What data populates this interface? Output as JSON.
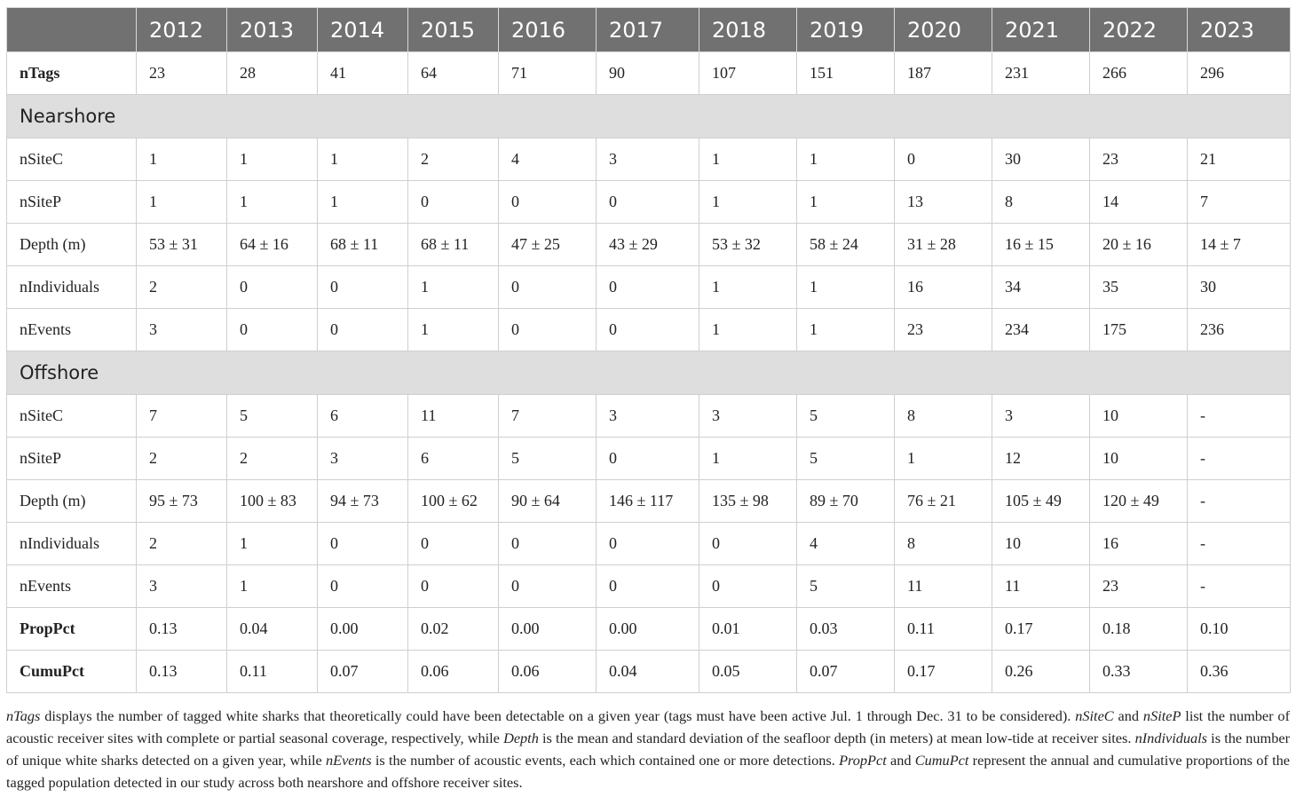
{
  "years": [
    "2012",
    "2013",
    "2014",
    "2015",
    "2016",
    "2017",
    "2018",
    "2019",
    "2020",
    "2021",
    "2022",
    "2023"
  ],
  "rows": [
    {
      "type": "data",
      "label": "nTags",
      "bold": true,
      "values": [
        "23",
        "28",
        "41",
        "64",
        "71",
        "90",
        "107",
        "151",
        "187",
        "231",
        "266",
        "296"
      ]
    },
    {
      "type": "section",
      "label": "Nearshore"
    },
    {
      "type": "data",
      "label": "nSiteC",
      "values": [
        "1",
        "1",
        "1",
        "2",
        "4",
        "3",
        "1",
        "1",
        "0",
        "30",
        "23",
        "21"
      ]
    },
    {
      "type": "data",
      "label": "nSiteP",
      "values": [
        "1",
        "1",
        "1",
        "0",
        "0",
        "0",
        "1",
        "1",
        "13",
        "8",
        "14",
        "7"
      ]
    },
    {
      "type": "data",
      "label": "Depth (m)",
      "values": [
        "53 ± 31",
        "64 ± 16",
        "68 ± 11",
        "68 ± 11",
        "47 ± 25",
        "43 ± 29",
        "53 ± 32",
        "58 ± 24",
        "31 ± 28",
        "16 ± 15",
        "20 ± 16",
        "14 ± 7"
      ]
    },
    {
      "type": "data",
      "label": "nIndividuals",
      "values": [
        "2",
        "0",
        "0",
        "1",
        "0",
        "0",
        "1",
        "1",
        "16",
        "34",
        "35",
        "30"
      ]
    },
    {
      "type": "data",
      "label": "nEvents",
      "values": [
        "3",
        "0",
        "0",
        "1",
        "0",
        "0",
        "1",
        "1",
        "23",
        "234",
        "175",
        "236"
      ]
    },
    {
      "type": "section",
      "label": "Offshore"
    },
    {
      "type": "data",
      "label": "nSiteC",
      "values": [
        "7",
        "5",
        "6",
        "11",
        "7",
        "3",
        "3",
        "5",
        "8",
        "3",
        "10",
        "-"
      ]
    },
    {
      "type": "data",
      "label": "nSiteP",
      "values": [
        "2",
        "2",
        "3",
        "6",
        "5",
        "0",
        "1",
        "5",
        "1",
        "12",
        "10",
        "-"
      ]
    },
    {
      "type": "data",
      "label": "Depth (m)",
      "values": [
        "95 ± 73",
        "100 ± 83",
        "94 ± 73",
        "100 ± 62",
        "90 ± 64",
        "146 ± 117",
        "135 ± 98",
        "89 ± 70",
        "76 ± 21",
        "105 ± 49",
        "120 ± 49",
        "-"
      ]
    },
    {
      "type": "data",
      "label": "nIndividuals",
      "values": [
        "2",
        "1",
        "0",
        "0",
        "0",
        "0",
        "0",
        "4",
        "8",
        "10",
        "16",
        "-"
      ]
    },
    {
      "type": "data",
      "label": "nEvents",
      "values": [
        "3",
        "1",
        "0",
        "0",
        "0",
        "0",
        "0",
        "5",
        "11",
        "11",
        "23",
        "-"
      ]
    },
    {
      "type": "data",
      "label": "PropPct",
      "bold": true,
      "values": [
        "0.13",
        "0.04",
        "0.00",
        "0.02",
        "0.00",
        "0.00",
        "0.01",
        "0.03",
        "0.11",
        "0.17",
        "0.18",
        "0.10"
      ]
    },
    {
      "type": "data",
      "label": "CumuPct",
      "bold": true,
      "values": [
        "0.13",
        "0.11",
        "0.07",
        "0.06",
        "0.06",
        "0.04",
        "0.05",
        "0.07",
        "0.17",
        "0.26",
        "0.33",
        "0.36"
      ]
    }
  ],
  "footnote": [
    {
      "t": "nTags",
      "i": true
    },
    {
      "t": " displays the number of tagged white sharks that theoretically could have been detectable on a given year (tags must have been active Jul. 1 through Dec. 31 to be considered). "
    },
    {
      "t": "nSiteC",
      "i": true
    },
    {
      "t": " and "
    },
    {
      "t": "nSiteP",
      "i": true
    },
    {
      "t": " list the number of acoustic receiver sites with complete or partial seasonal coverage, respectively, while "
    },
    {
      "t": "Depth",
      "i": true
    },
    {
      "t": " is the mean and standard deviation of the seafloor depth (in meters) at mean low-tide at receiver sites. "
    },
    {
      "t": "nIndividuals",
      "i": true
    },
    {
      "t": " is the number of unique white sharks detected on a given year, while "
    },
    {
      "t": "nEvents",
      "i": true
    },
    {
      "t": " is the number of acoustic events, each which contained one or more detections. "
    },
    {
      "t": "PropPct",
      "i": true
    },
    {
      "t": " and "
    },
    {
      "t": "CumuPct",
      "i": true
    },
    {
      "t": " represent the annual and cumulative proportions of the tagged population detected in our study across both nearshore and offshore receiver sites."
    }
  ]
}
